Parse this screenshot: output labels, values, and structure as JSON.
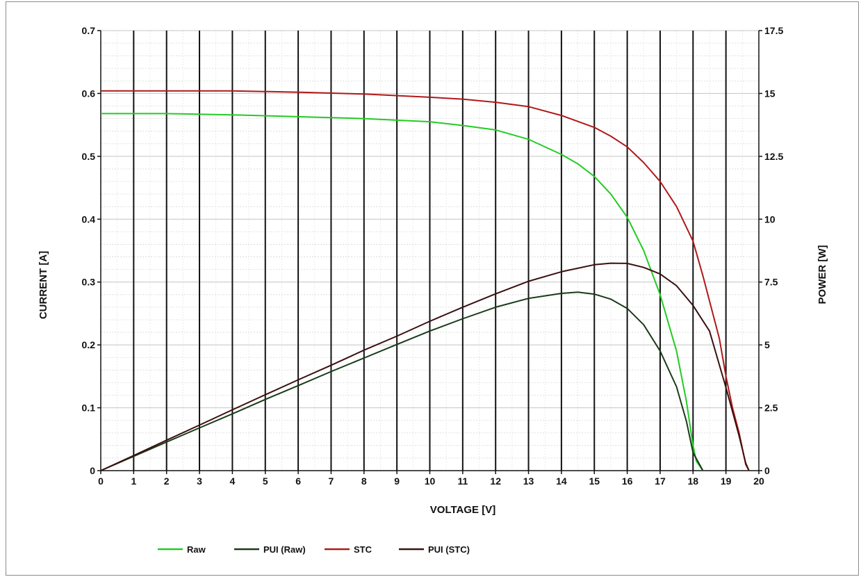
{
  "chart_data": {
    "type": "line",
    "xlabel": "VOLTAGE [V]",
    "ylabel_left": "CURRENT [A]",
    "ylabel_right": "POWER [W]",
    "xlim": [
      0,
      20
    ],
    "ylim_left": [
      0,
      0.7
    ],
    "ylim_right": [
      0,
      17.5
    ],
    "x_ticks": [
      "0",
      "1",
      "2",
      "3",
      "4",
      "5",
      "6",
      "7",
      "8",
      "9",
      "10",
      "11",
      "12",
      "13",
      "14",
      "15",
      "16",
      "17",
      "18",
      "19",
      "20"
    ],
    "y_left_ticks": [
      "0",
      "0.1",
      "0.2",
      "0.3",
      "0.4",
      "0.5",
      "0.6",
      "0.7"
    ],
    "y_right_ticks": [
      "0",
      "2.5",
      "5",
      "7.5",
      "10",
      "12.5",
      "15",
      "17.5"
    ],
    "grid": true,
    "legend_position": "bottom-left",
    "series": [
      {
        "name": "Raw",
        "axis": "left",
        "color": "#22cc22",
        "points": [
          [
            0,
            0.568
          ],
          [
            2,
            0.568
          ],
          [
            4,
            0.566
          ],
          [
            6,
            0.563
          ],
          [
            8,
            0.56
          ],
          [
            10,
            0.555
          ],
          [
            11,
            0.549
          ],
          [
            12,
            0.542
          ],
          [
            13,
            0.527
          ],
          [
            14,
            0.503
          ],
          [
            14.5,
            0.488
          ],
          [
            15,
            0.468
          ],
          [
            15.5,
            0.44
          ],
          [
            16,
            0.403
          ],
          [
            16.5,
            0.35
          ],
          [
            17,
            0.28
          ],
          [
            17.5,
            0.19
          ],
          [
            17.8,
            0.11
          ],
          [
            18,
            0.04
          ],
          [
            18.1,
            0.015
          ],
          [
            18.3,
            0.0
          ]
        ]
      },
      {
        "name": "PUI (Raw)",
        "axis": "right",
        "color": "#1a3a1a",
        "points": [
          [
            0,
            0
          ],
          [
            1,
            0.57
          ],
          [
            2,
            1.14
          ],
          [
            3,
            1.7
          ],
          [
            4,
            2.26
          ],
          [
            5,
            2.83
          ],
          [
            6,
            3.38
          ],
          [
            7,
            3.94
          ],
          [
            8,
            4.48
          ],
          [
            9,
            5.02
          ],
          [
            10,
            5.55
          ],
          [
            11,
            6.04
          ],
          [
            12,
            6.5
          ],
          [
            13,
            6.85
          ],
          [
            14,
            7.05
          ],
          [
            14.5,
            7.1
          ],
          [
            15,
            7.02
          ],
          [
            15.5,
            6.82
          ],
          [
            16,
            6.45
          ],
          [
            16.5,
            5.8
          ],
          [
            17,
            4.76
          ],
          [
            17.5,
            3.33
          ],
          [
            17.8,
            1.96
          ],
          [
            18,
            0.72
          ],
          [
            18.3,
            0.0
          ]
        ]
      },
      {
        "name": "STC",
        "axis": "left",
        "color": "#b01818",
        "points": [
          [
            0,
            0.604
          ],
          [
            2,
            0.604
          ],
          [
            4,
            0.604
          ],
          [
            6,
            0.602
          ],
          [
            8,
            0.599
          ],
          [
            10,
            0.594
          ],
          [
            11,
            0.591
          ],
          [
            12,
            0.586
          ],
          [
            13,
            0.579
          ],
          [
            14,
            0.565
          ],
          [
            15,
            0.546
          ],
          [
            15.5,
            0.532
          ],
          [
            16,
            0.515
          ],
          [
            16.5,
            0.49
          ],
          [
            17,
            0.46
          ],
          [
            17.5,
            0.42
          ],
          [
            18,
            0.365
          ],
          [
            18.3,
            0.31
          ],
          [
            18.6,
            0.25
          ],
          [
            18.8,
            0.21
          ],
          [
            19,
            0.15
          ],
          [
            19.2,
            0.1
          ],
          [
            19.4,
            0.06
          ],
          [
            19.6,
            0.01
          ],
          [
            19.7,
            0.0
          ]
        ]
      },
      {
        "name": "PUI (STC)",
        "axis": "right",
        "color": "#3a1010",
        "points": [
          [
            0,
            0
          ],
          [
            1,
            0.6
          ],
          [
            2,
            1.21
          ],
          [
            3,
            1.81
          ],
          [
            4,
            2.42
          ],
          [
            5,
            3.02
          ],
          [
            6,
            3.61
          ],
          [
            7,
            4.19
          ],
          [
            8,
            4.79
          ],
          [
            9,
            5.35
          ],
          [
            10,
            5.94
          ],
          [
            11,
            6.5
          ],
          [
            12,
            7.03
          ],
          [
            13,
            7.53
          ],
          [
            14,
            7.91
          ],
          [
            15,
            8.19
          ],
          [
            15.5,
            8.25
          ],
          [
            16,
            8.24
          ],
          [
            16.5,
            8.08
          ],
          [
            17,
            7.82
          ],
          [
            17.5,
            7.35
          ],
          [
            18,
            6.57
          ],
          [
            18.5,
            5.55
          ],
          [
            19,
            3.3
          ],
          [
            19.2,
            2.35
          ],
          [
            19.4,
            1.38
          ],
          [
            19.6,
            0.3
          ],
          [
            19.7,
            0.0
          ]
        ]
      }
    ]
  }
}
